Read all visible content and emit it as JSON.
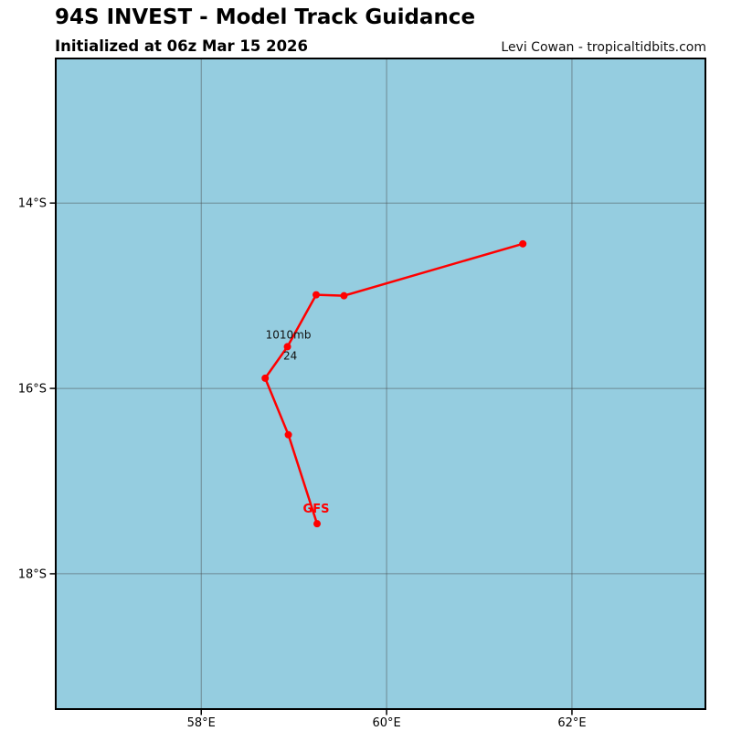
{
  "header": {
    "title": "94S INVEST - Model Track Guidance",
    "subtitle": "Initialized at 06z Mar 15 2026",
    "attribution": "Levi Cowan - tropicaltidbits.com"
  },
  "map": {
    "ocean_color": "#95CDE0",
    "grid_color": "rgba(70,70,70,0.5)",
    "border_color": "#000000",
    "tick_color": "#000000",
    "x_ticks": [
      {
        "label": "58°E",
        "lon": 58
      },
      {
        "label": "60°E",
        "lon": 60
      },
      {
        "label": "62°E",
        "lon": 62
      }
    ],
    "y_ticks": [
      {
        "label": "14°S",
        "lat": -14
      },
      {
        "label": "16°S",
        "lat": -16
      },
      {
        "label": "18°S",
        "lat": -18
      }
    ]
  },
  "chart_data": {
    "type": "line",
    "title": "94S INVEST - Model Track Guidance",
    "init_time": "06z Mar 15 2026",
    "storm_id": "94S INVEST",
    "extent": {
      "lon": [
        56.43,
        63.44
      ],
      "lat": [
        -19.46,
        -12.44
      ]
    },
    "grid_interval_deg": 2,
    "legend_position": "none",
    "series": [
      {
        "name": "GFS",
        "color": "#FF0000",
        "points": [
          {
            "lon": 61.47,
            "lat": -14.44
          },
          {
            "lon": 59.54,
            "lat": -15.0
          },
          {
            "lon": 59.24,
            "lat": -14.99
          },
          {
            "lon": 58.93,
            "lat": -15.55
          },
          {
            "lon": 58.69,
            "lat": -15.89
          },
          {
            "lon": 58.94,
            "lat": -16.5
          },
          {
            "lon": 59.25,
            "lat": -17.46
          }
        ]
      }
    ],
    "annotations": [
      {
        "text": "1010mb",
        "lon": 58.94,
        "lat": -15.46,
        "color": "#111111",
        "bold": false
      },
      {
        "text": "24",
        "lon": 58.96,
        "lat": -15.69,
        "color": "#111111",
        "bold": false
      },
      {
        "text": "GFS",
        "lon": 59.24,
        "lat": -17.34,
        "color": "#FF0000",
        "bold": true
      }
    ]
  }
}
